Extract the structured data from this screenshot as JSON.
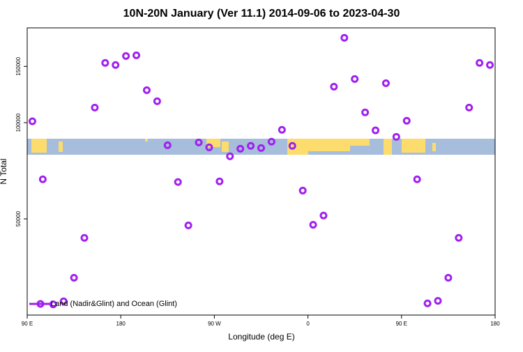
{
  "chart_data": {
    "type": "scatter",
    "title": "10N-20N January (Ver 11.1)   2014-09-06 to 2023-04-30",
    "xlabel": "Longitude (deg E)",
    "ylabel": "N Total",
    "xlim": [
      90,
      540
    ],
    "ylim": [
      25000,
      198000
    ],
    "ylog": true,
    "xticks": [
      {
        "value": 90,
        "label": "90 E"
      },
      {
        "value": 180,
        "label": "180"
      },
      {
        "value": 270,
        "label": "90 W"
      },
      {
        "value": 360,
        "label": "0"
      },
      {
        "value": 450,
        "label": "90 E"
      },
      {
        "value": 540,
        "label": "180"
      }
    ],
    "yticks": [
      50000,
      100000,
      150000
    ],
    "legend": "bottom-left",
    "series": [
      {
        "name": "Land (Nadir&Glint) and Ocean (Glint)",
        "color": "#a020f0",
        "x": [
          95,
          105,
          115,
          125,
          135,
          145,
          155,
          165,
          175,
          185,
          195,
          205,
          215,
          225,
          235,
          245,
          255,
          265,
          275,
          285,
          295,
          305,
          315,
          325,
          335,
          345,
          355,
          365,
          375,
          385,
          395,
          405,
          415,
          425,
          435,
          445,
          455,
          465,
          475,
          485,
          495,
          505,
          515,
          525,
          535
        ],
        "values": [
          101000,
          66500,
          27000,
          27600,
          32700,
          43600,
          111500,
          153800,
          151500,
          161700,
          162500,
          126400,
          116700,
          85000,
          65200,
          47700,
          86700,
          83700,
          65500,
          78500,
          82900,
          84600,
          83300,
          87200,
          95000,
          84600,
          61300,
          47900,
          51200,
          129600,
          184300,
          137000,
          107700,
          94600,
          132900,
          90300,
          101400,
          66500,
          27200,
          27700,
          32700,
          43600,
          111500,
          153800,
          151500
        ]
      }
    ]
  }
}
